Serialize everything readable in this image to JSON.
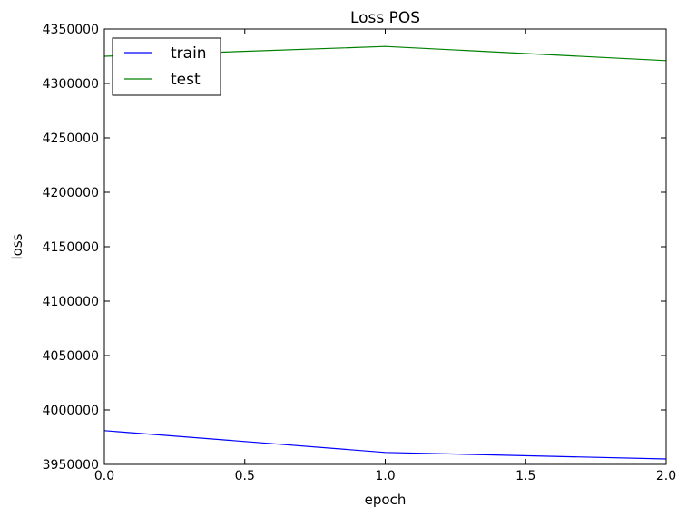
{
  "chart_data": {
    "type": "line",
    "title": "Loss POS",
    "xlabel": "epoch",
    "ylabel": "loss",
    "xlim": [
      0,
      2
    ],
    "ylim": [
      3950000,
      4350000
    ],
    "xticks": [
      0,
      0.5,
      1,
      1.5,
      2
    ],
    "xtick_labels": [
      "0.0",
      "0.5",
      "1.0",
      "1.5",
      "2.0"
    ],
    "yticks": [
      3950000,
      4000000,
      4050000,
      4100000,
      4150000,
      4200000,
      4250000,
      4300000,
      4350000
    ],
    "ytick_labels": [
      "3950000",
      "4000000",
      "4050000",
      "4100000",
      "4150000",
      "4200000",
      "4250000",
      "4300000",
      "4350000"
    ],
    "grid": false,
    "legend_position": "top-left",
    "x": [
      0,
      1,
      2
    ],
    "series": [
      {
        "name": "train",
        "color": "#0000ff",
        "values": [
          3981000,
          3961000,
          3955000
        ]
      },
      {
        "name": "test",
        "color": "#008000",
        "values": [
          4325000,
          4334000,
          4321000
        ]
      }
    ]
  }
}
